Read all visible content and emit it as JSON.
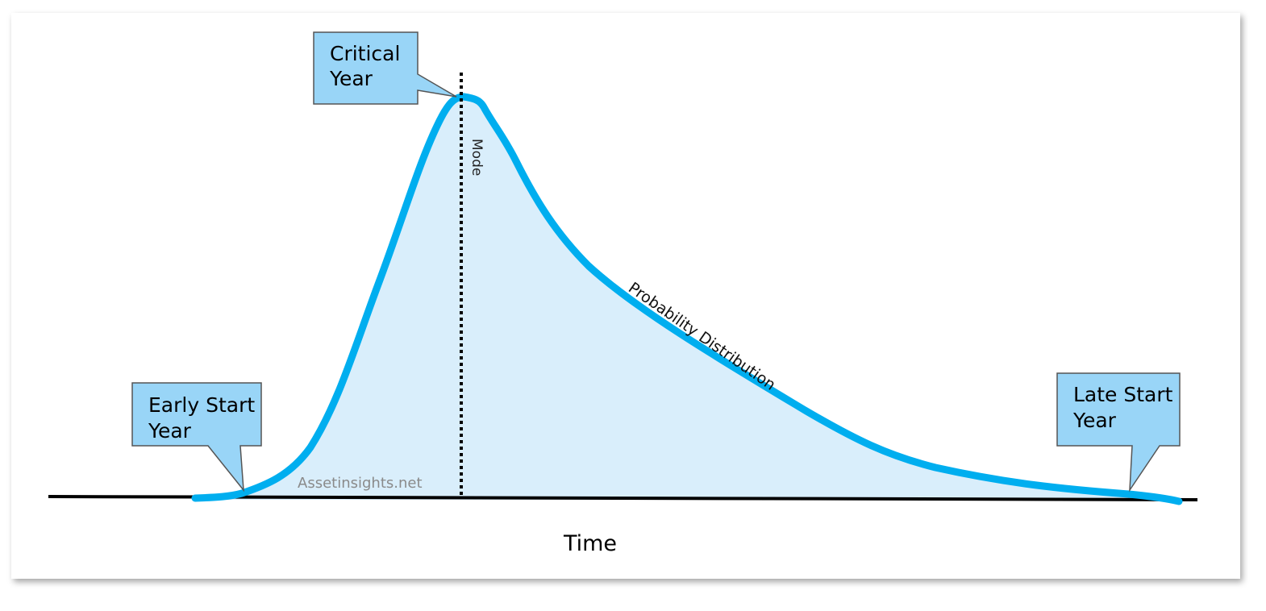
{
  "callouts": [
    {
      "lines": [
        "Critical",
        "Year"
      ]
    },
    {
      "lines": [
        "Early Start",
        "Year"
      ]
    },
    {
      "lines": [
        "Late Start",
        "Year"
      ]
    }
  ],
  "mode_label": "Mode",
  "curve_label": "Probability Distribution",
  "axis_label": "Time",
  "watermark": "Assetinsights.net"
}
